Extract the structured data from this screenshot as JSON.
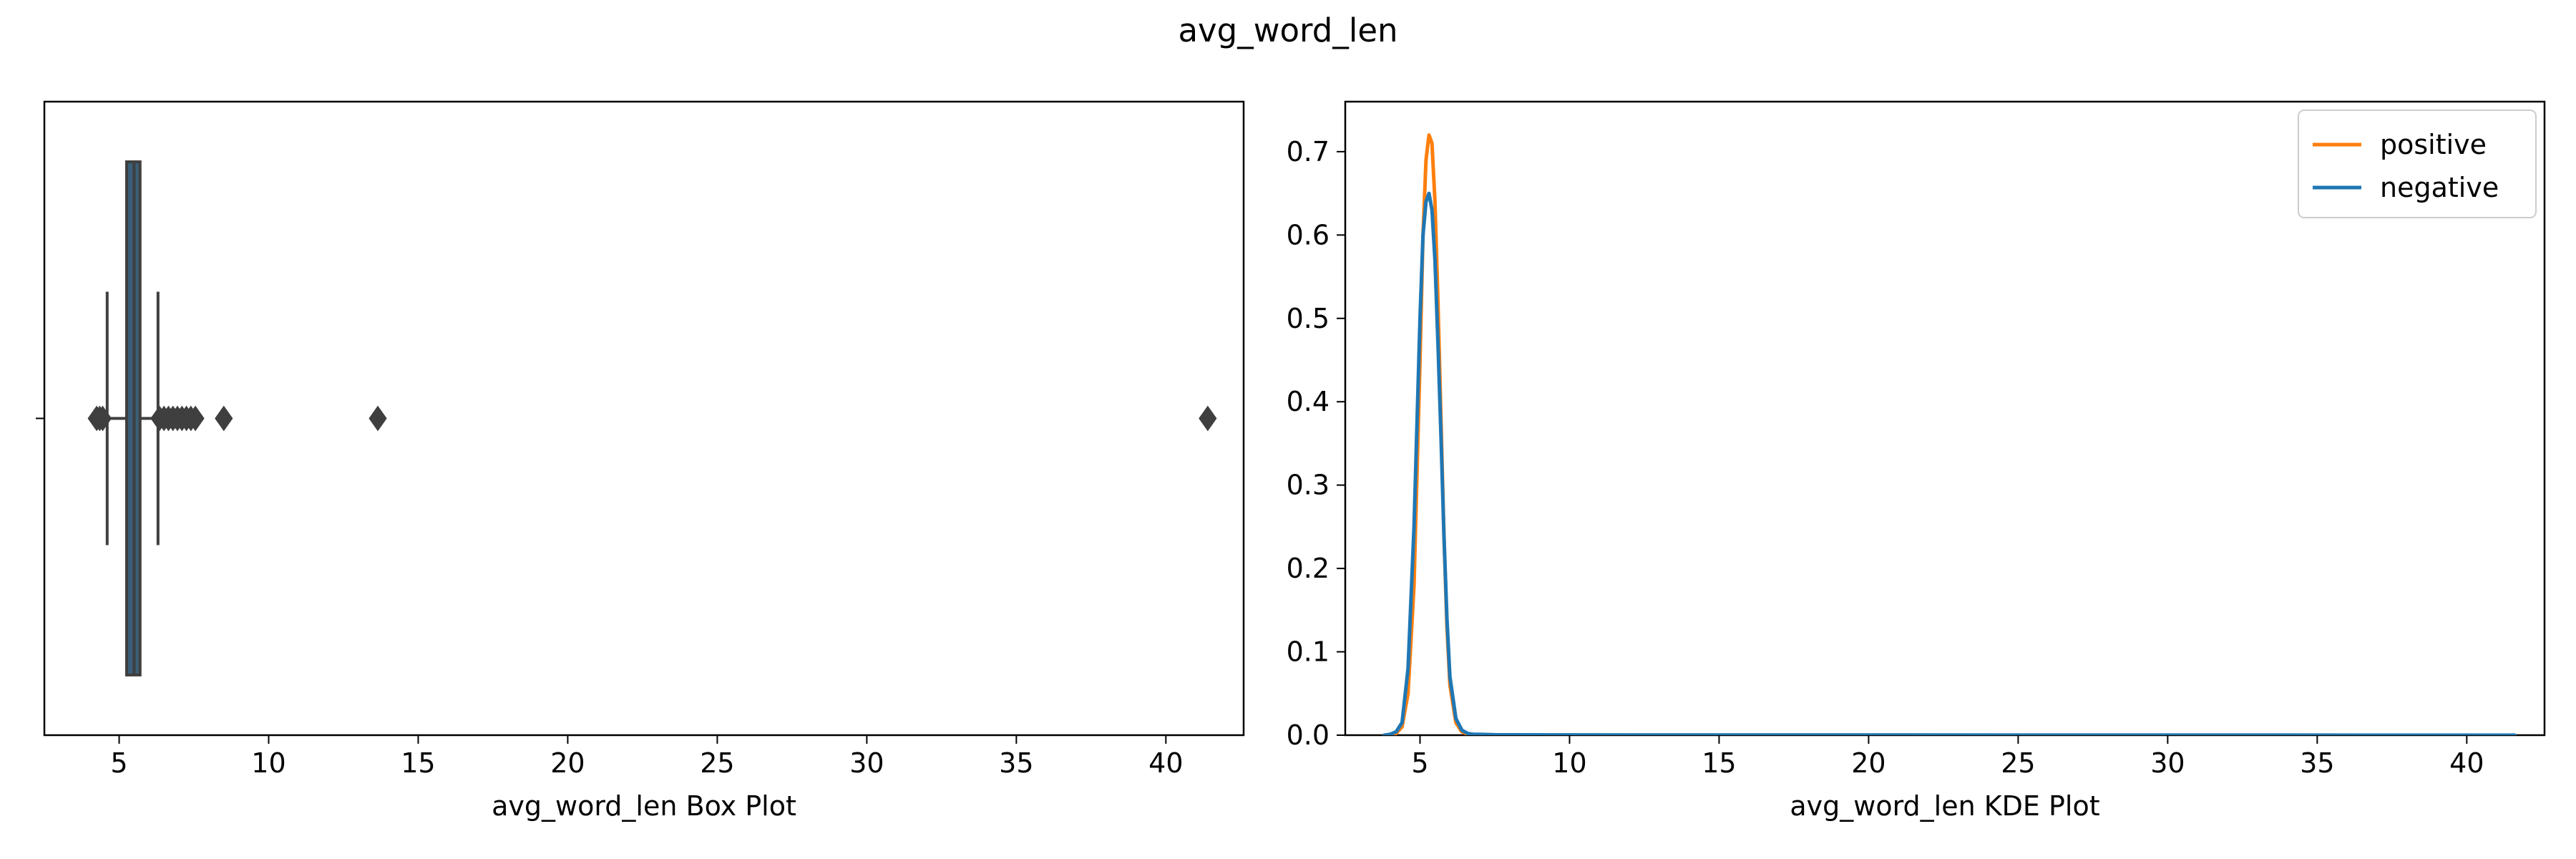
{
  "figure": {
    "title": "avg_word_len"
  },
  "chart_data": [
    {
      "type": "box",
      "xlabel": "avg_word_len Box Plot",
      "ylabel": "",
      "xlim": [
        2.5,
        42.6
      ],
      "x_ticks": [
        5,
        10,
        15,
        20,
        25,
        30,
        35,
        40
      ],
      "box": {
        "q1": 5.25,
        "median": 5.5,
        "q3": 5.7,
        "whisker_low": 4.6,
        "whisker_high": 6.3
      },
      "outliers": [
        4.25,
        4.35,
        4.45,
        6.35,
        6.5,
        6.65,
        6.8,
        6.95,
        7.1,
        7.25,
        7.4,
        7.55,
        8.5,
        13.65,
        41.4
      ],
      "color": "#3f3f3f",
      "grid": false
    },
    {
      "type": "line",
      "xlabel": "avg_word_len KDE Plot",
      "ylabel": "",
      "xlim": [
        2.5,
        42.6
      ],
      "ylim": [
        0,
        0.76
      ],
      "x_ticks": [
        5,
        10,
        15,
        20,
        25,
        30,
        35,
        40
      ],
      "y_ticks": [
        0.0,
        0.1,
        0.2,
        0.3,
        0.4,
        0.5,
        0.6,
        0.7
      ],
      "legend": "top-right",
      "grid": false,
      "series": [
        {
          "name": "positive",
          "color": "#ff7f0e",
          "x": [
            3.8,
            4.0,
            4.2,
            4.4,
            4.6,
            4.8,
            5.0,
            5.1,
            5.2,
            5.3,
            5.4,
            5.5,
            5.6,
            5.7,
            5.8,
            5.9,
            6.0,
            6.2,
            6.4,
            6.6,
            6.8,
            7.0,
            7.5,
            8.0,
            10.0,
            15.0,
            20.0,
            30.0,
            41.6
          ],
          "y": [
            0.0,
            0.0,
            0.002,
            0.01,
            0.05,
            0.18,
            0.45,
            0.6,
            0.69,
            0.72,
            0.71,
            0.64,
            0.52,
            0.38,
            0.24,
            0.13,
            0.06,
            0.015,
            0.004,
            0.001,
            0.0,
            0.0,
            0.0,
            0.0,
            0.0,
            0.0,
            0.0,
            0.0,
            0.0
          ]
        },
        {
          "name": "negative",
          "color": "#1f77b4",
          "x": [
            3.8,
            4.0,
            4.2,
            4.4,
            4.6,
            4.8,
            5.0,
            5.1,
            5.2,
            5.3,
            5.4,
            5.5,
            5.6,
            5.7,
            5.8,
            5.9,
            6.0,
            6.2,
            6.4,
            6.6,
            6.8,
            7.0,
            7.5,
            8.0,
            10.0,
            15.0,
            20.0,
            30.0,
            41.6
          ],
          "y": [
            0.0,
            0.001,
            0.004,
            0.015,
            0.08,
            0.25,
            0.5,
            0.6,
            0.64,
            0.65,
            0.63,
            0.57,
            0.47,
            0.36,
            0.24,
            0.14,
            0.07,
            0.02,
            0.006,
            0.002,
            0.001,
            0.001,
            0.0005,
            0.0004,
            0.0003,
            0.0002,
            0.0002,
            0.0001,
            0.0
          ]
        }
      ]
    }
  ]
}
